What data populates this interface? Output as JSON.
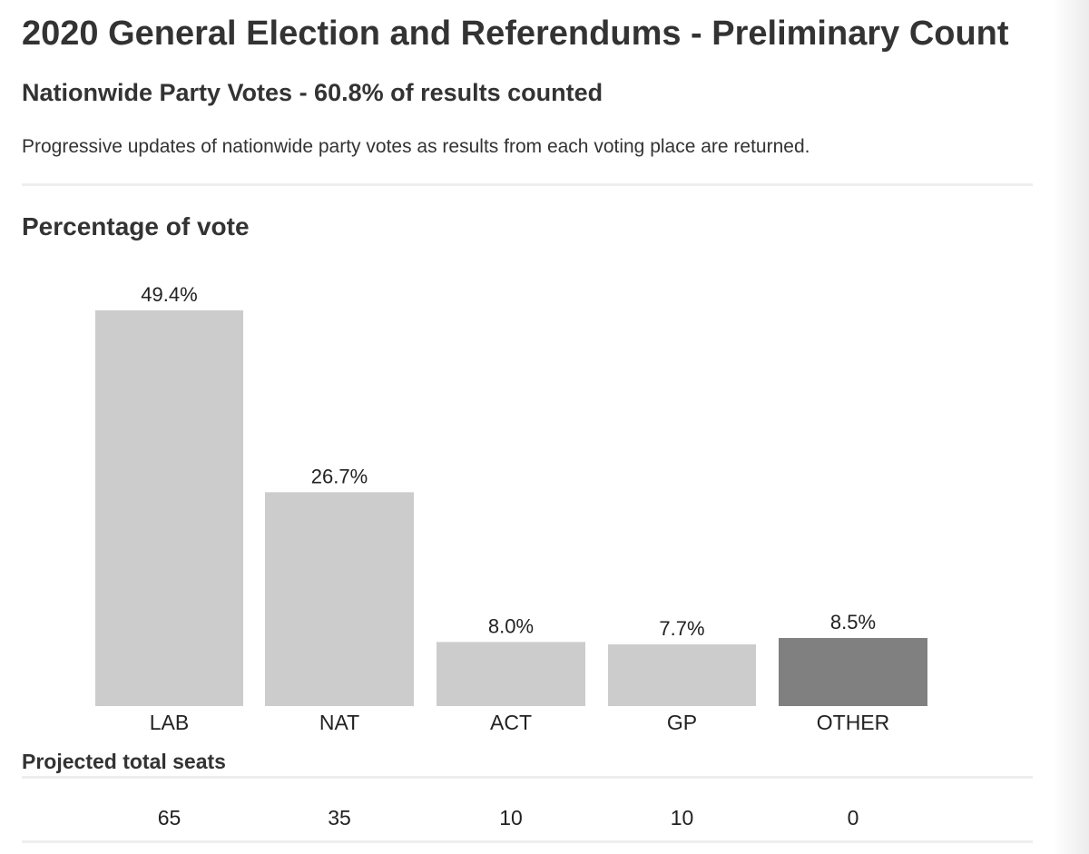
{
  "header": {
    "title": "2020 General Election and Referendums - Preliminary Count",
    "subtitle": "Nationwide Party Votes - 60.8% of results counted",
    "description": "Progressive updates of nationwide party votes as results from each voting place are returned."
  },
  "chart_data": {
    "type": "bar",
    "title": "Percentage of vote",
    "xlabel": "",
    "ylabel": "",
    "ylim": [
      0,
      49.4
    ],
    "grid": false,
    "categories": [
      "LAB",
      "NAT",
      "ACT",
      "GP",
      "OTHER"
    ],
    "values": [
      49.4,
      26.7,
      8.0,
      7.7,
      8.5
    ],
    "value_labels": [
      "49.4%",
      "26.7%",
      "8.0%",
      "7.7%",
      "8.5%"
    ],
    "colors": [
      "#cccccc",
      "#cccccc",
      "#cccccc",
      "#cccccc",
      "#808080"
    ]
  },
  "seats": {
    "heading": "Projected total seats",
    "values": [
      "65",
      "35",
      "10",
      "10",
      "0"
    ]
  }
}
